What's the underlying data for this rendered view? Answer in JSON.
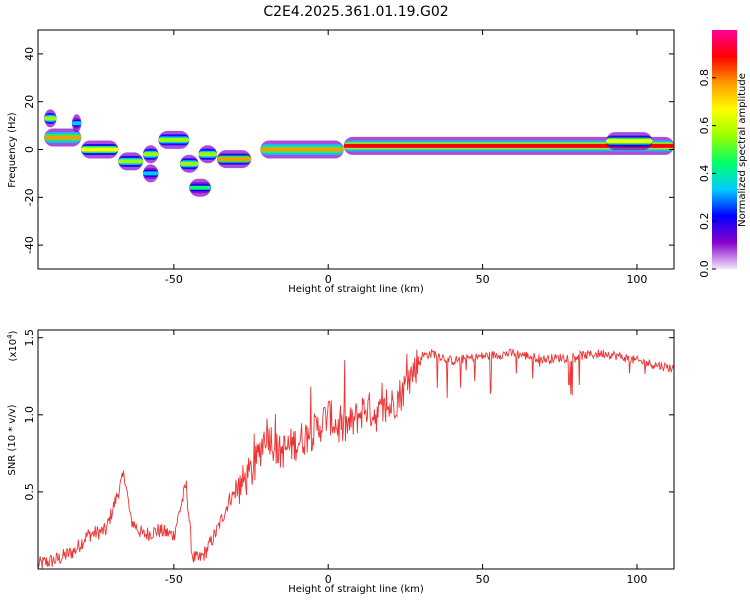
{
  "title": "C2E4.2025.361.01.19.G02",
  "chart_data": [
    {
      "type": "heatmap",
      "name": "spectrogram",
      "xlabel": "Height of straight line (km)",
      "ylabel": "Frequency (Hz)",
      "xlim": [
        -94,
        112
      ],
      "ylim": [
        -50,
        50
      ],
      "xticks": [
        -50,
        0,
        50,
        100
      ],
      "yticks": [
        -40,
        -20,
        0,
        20,
        40
      ],
      "xtick_labels": [
        "-50",
        "0",
        "50",
        "100"
      ],
      "ytick_labels": [
        "-40",
        "-20",
        "0",
        "20",
        "40"
      ],
      "colorbar": {
        "label": "Normalized spectral amplitude",
        "range": [
          0,
          1
        ],
        "ticks": [
          0.0,
          0.2,
          0.4,
          0.6,
          0.8
        ],
        "tick_labels": [
          "0.0",
          "0.2",
          "0.4",
          "0.6",
          "0.8"
        ],
        "colors": [
          "#f0e6fa",
          "#8800cc",
          "#0000ff",
          "#00ccff",
          "#00ff66",
          "#99ff00",
          "#ffff00",
          "#ff9900",
          "#ff0000",
          "#ff0099"
        ]
      },
      "features": [
        {
          "x": [
            -92,
            -88
          ],
          "y": 13,
          "amp": 0.55
        },
        {
          "x": [
            -83,
            -80
          ],
          "y": 11,
          "amp": 0.35
        },
        {
          "x": [
            -92,
            -80
          ],
          "y": 5,
          "amp": 0.8
        },
        {
          "x": [
            -80,
            -68
          ],
          "y": 0,
          "amp": 0.65
        },
        {
          "x": [
            -68,
            -60
          ],
          "y": -5,
          "amp": 0.6
        },
        {
          "x": [
            -60,
            -55
          ],
          "y": -2,
          "amp": 0.5
        },
        {
          "x": [
            -55,
            -45
          ],
          "y": 4,
          "amp": 0.55
        },
        {
          "x": [
            -48,
            -42
          ],
          "y": -6,
          "amp": 0.55
        },
        {
          "x": [
            -42,
            -36
          ],
          "y": -2,
          "amp": 0.6
        },
        {
          "x": [
            -36,
            -25
          ],
          "y": -4,
          "amp": 0.75
        },
        {
          "x": [
            -22,
            5
          ],
          "y": 0,
          "amp": 0.8
        },
        {
          "x": [
            -60,
            -55
          ],
          "y": -10,
          "amp": 0.3
        },
        {
          "x": [
            -45,
            -38
          ],
          "y": -16,
          "amp": 0.45
        },
        {
          "x": [
            5,
            112
          ],
          "y": 1.5,
          "amp": 0.9
        },
        {
          "x": [
            90,
            105
          ],
          "y": 3.5,
          "amp": 0.7
        }
      ]
    },
    {
      "type": "line",
      "name": "snr",
      "xlabel": "Height of straight line (km)",
      "ylabel": "SNR (10 * v/v)",
      "multiplier": "(x10",
      "multiplier_exp": "4",
      "multiplier_close": ")",
      "xlim": [
        -94,
        112
      ],
      "ylim": [
        0,
        1.55
      ],
      "xticks": [
        -50,
        0,
        50,
        100
      ],
      "yticks": [
        0.5,
        1.0,
        1.5
      ],
      "xtick_labels": [
        "-50",
        "0",
        "50",
        "100"
      ],
      "ytick_labels": [
        "0.5",
        "1.0",
        "1.5"
      ],
      "series": [
        {
          "name": "SNR",
          "color": "#ee3333",
          "x": [
            -94,
            -88,
            -82,
            -78,
            -72,
            -68,
            -66,
            -64,
            -60,
            -55,
            -50,
            -46,
            -44,
            -42,
            -40,
            -36,
            -32,
            -28,
            -24,
            -20,
            -16,
            -12,
            -8,
            -4,
            0,
            4,
            8,
            12,
            16,
            20,
            24,
            28,
            30,
            34,
            40,
            50,
            60,
            70,
            80,
            90,
            100,
            112
          ],
          "values": [
            0.03,
            0.06,
            0.12,
            0.22,
            0.25,
            0.5,
            0.62,
            0.32,
            0.22,
            0.25,
            0.22,
            0.55,
            0.08,
            0.06,
            0.1,
            0.25,
            0.45,
            0.55,
            0.65,
            0.9,
            0.75,
            0.8,
            0.85,
            0.9,
            1.0,
            0.9,
            0.95,
            1.05,
            1.0,
            1.05,
            1.15,
            1.3,
            1.38,
            1.4,
            1.35,
            1.38,
            1.4,
            1.36,
            1.38,
            1.4,
            1.35,
            1.3
          ]
        }
      ]
    }
  ]
}
